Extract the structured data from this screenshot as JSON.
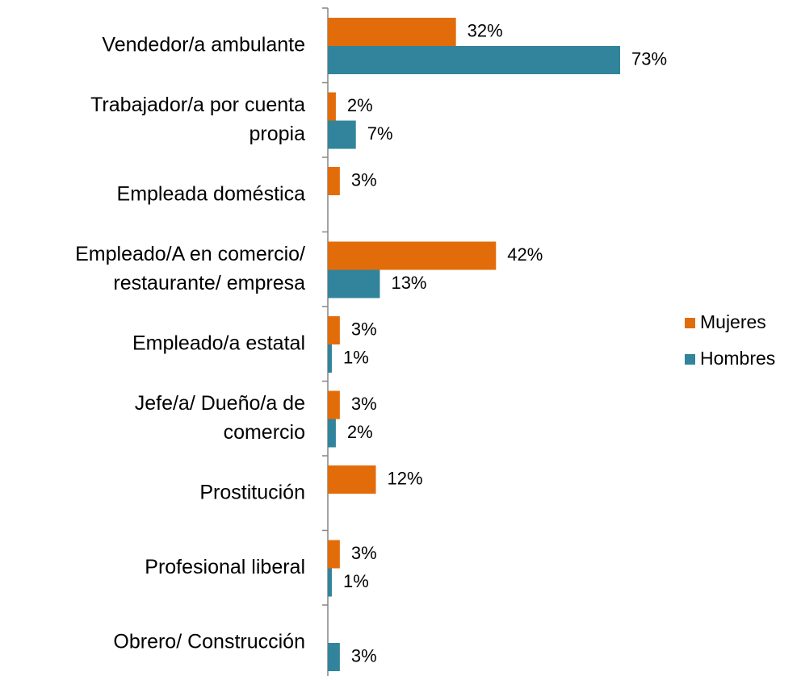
{
  "chart_data": {
    "type": "hbar",
    "categories": [
      "Vendedor/a ambulante",
      "Trabajador/a por cuenta\npropia",
      "Empleada doméstica",
      "Empleado/A en comercio/\nrestaurante/ empresa",
      "Empleado/a estatal",
      "Jefe/a/ Dueño/a de\ncomercio",
      "Prostitución",
      "Profesional liberal",
      "Obrero/ Construcción"
    ],
    "series": [
      {
        "name": "Mujeres",
        "color": "#e36c0a",
        "values": [
          32,
          2,
          3,
          42,
          3,
          3,
          12,
          3,
          null
        ],
        "value_labels": [
          "32%",
          "2%",
          "3%",
          "42%",
          "3%",
          "3%",
          "12%",
          "3%",
          null
        ]
      },
      {
        "name": "Hombres",
        "color": "#31849b",
        "values": [
          73,
          7,
          null,
          13,
          1,
          2,
          null,
          1,
          3
        ],
        "value_labels": [
          "73%",
          "7%",
          null,
          "13%",
          "1%",
          "2%",
          null,
          "1%",
          "3%"
        ]
      }
    ],
    "legend": "right"
  }
}
